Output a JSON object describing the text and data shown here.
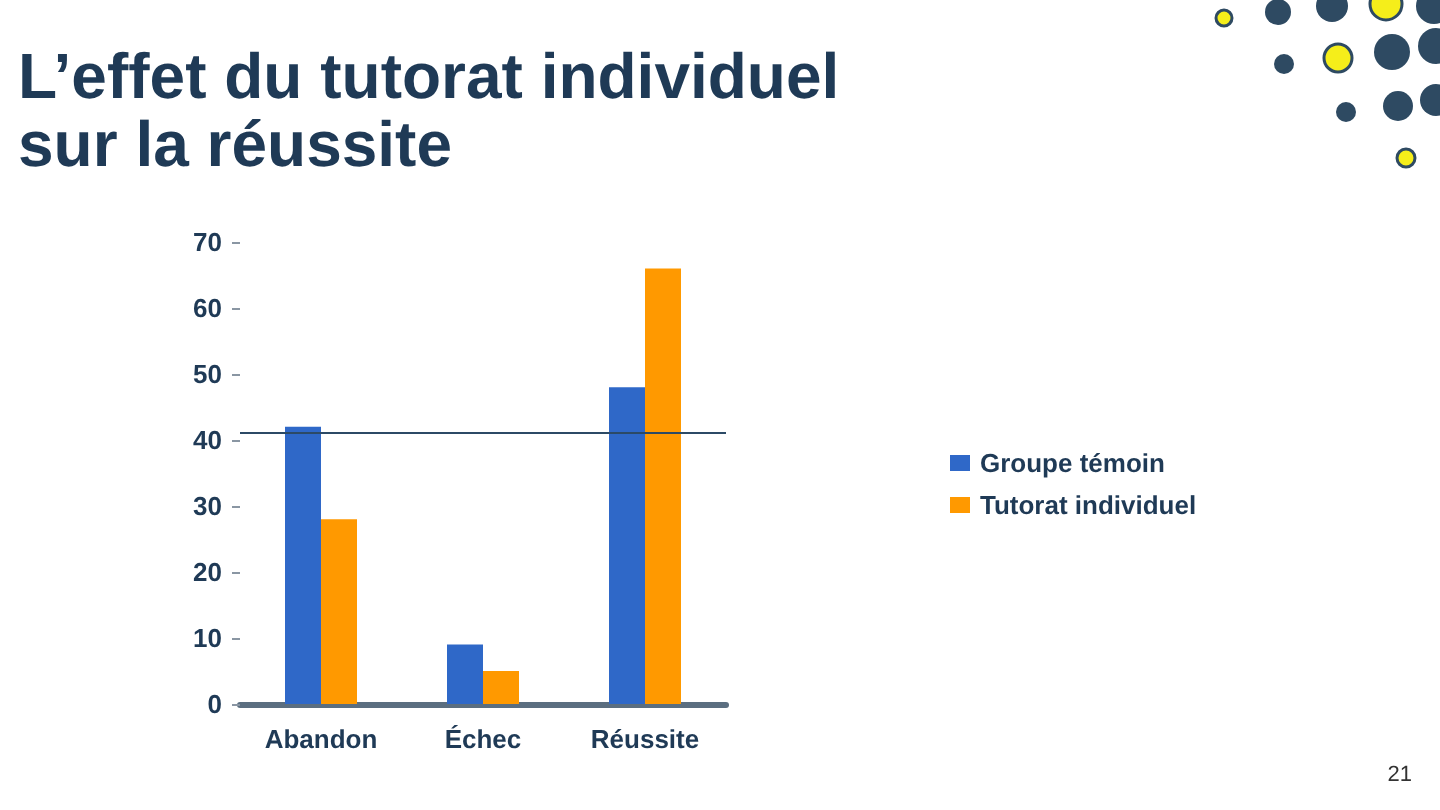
{
  "chart_data": {
    "type": "bar",
    "title": "L’effet du tutorat individuel sur la réussite",
    "categories": [
      "Abandon",
      "Échec",
      "Réussite"
    ],
    "series": [
      {
        "name": "Groupe témoin",
        "color": "#2f68c8",
        "values": [
          42,
          9,
          48
        ]
      },
      {
        "name": "Tutorat individuel",
        "color": "#ff9900",
        "values": [
          28,
          5,
          66
        ]
      }
    ],
    "ylim": [
      0,
      70
    ],
    "yticks": [
      0,
      10,
      20,
      30,
      40,
      50,
      60,
      70
    ],
    "ref_lines": [
      {
        "axis": "y",
        "value": 41,
        "color": "#2c4a66"
      }
    ],
    "legend": "right",
    "grid": false,
    "annotations": [
      "21"
    ]
  }
}
